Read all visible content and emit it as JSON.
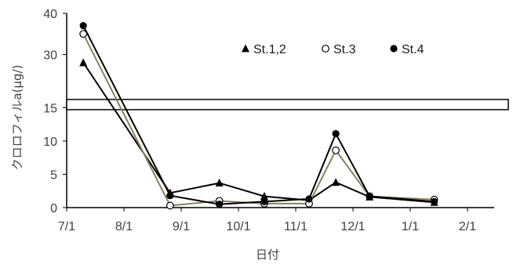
{
  "chart_data": {
    "type": "line",
    "xlabel": "日付",
    "ylabel": "クロロフィルa(μg/)",
    "x_tick_labels": [
      "7/1",
      "8/1",
      "9/1",
      "10/1",
      "11/1",
      "12/1",
      "1/1",
      "2/1"
    ],
    "y_tick_labels": [
      "0",
      "5",
      "10",
      "15",
      "30",
      "40"
    ],
    "y_axis_break": {
      "lower_max": 16,
      "upper_min": 20,
      "upper_max": 40
    },
    "legend_position": "top-right",
    "x": [
      "7/10",
      "8/26",
      "9/21",
      "10/15",
      "11/8",
      "11/22",
      "12/10",
      "1/14"
    ],
    "series": [
      {
        "name": "St.1,2",
        "marker": "triangle",
        "color": "#000000",
        "values": [
          28,
          2.2,
          3.7,
          1.7,
          1.1,
          3.8,
          1.6,
          0.8
        ]
      },
      {
        "name": "St.3",
        "marker": "open-circle",
        "color": "#8a8060",
        "values": [
          35,
          0.3,
          1.0,
          0.6,
          0.6,
          8.6,
          1.7,
          1.2
        ]
      },
      {
        "name": "St.4",
        "marker": "filled-circle",
        "color": "#000000",
        "values": [
          37,
          1.8,
          0.5,
          0.9,
          1.3,
          11.1,
          1.7,
          0.9
        ]
      }
    ]
  }
}
